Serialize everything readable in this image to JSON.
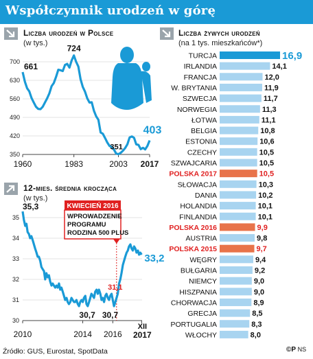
{
  "title": "Współczynnik urodzeń w górę",
  "source": "Źródło: GUS, Eurostat, SpotData",
  "logo": {
    "mark": "©P",
    "initials": "NS"
  },
  "icons": {
    "header_arrow": "arrow-down-right-icon",
    "panel_arrow": "arrow-up-right-icon",
    "mother_child": "mother-child-silhouette"
  },
  "colors": {
    "accent": "#1a9ad6",
    "red": "#e02020",
    "orange": "#e8734a",
    "light_bar": "#a8d4f0"
  },
  "chart_data": [
    {
      "type": "line",
      "title": "Liczba urodzeń w Polsce",
      "subtitle": "(w tys.)",
      "xlim": [
        1960,
        2017
      ],
      "ylim": [
        350,
        700
      ],
      "yticks": [
        350,
        420,
        490,
        560,
        630,
        700
      ],
      "xticks": [
        "1960",
        "1983",
        "2003",
        "2017"
      ],
      "annotations": [
        {
          "x": 1960,
          "y": 661,
          "label": "661"
        },
        {
          "x": 1983,
          "y": 724,
          "label": "724"
        },
        {
          "x": 2003,
          "y": 351,
          "label": "351"
        },
        {
          "x": 2017,
          "y": 403,
          "label": "403"
        }
      ],
      "x": [
        1960,
        1961,
        1962,
        1963,
        1964,
        1965,
        1966,
        1967,
        1968,
        1969,
        1970,
        1971,
        1972,
        1973,
        1974,
        1975,
        1976,
        1977,
        1978,
        1979,
        1980,
        1981,
        1982,
        1983,
        1984,
        1985,
        1986,
        1987,
        1988,
        1989,
        1990,
        1991,
        1992,
        1993,
        1994,
        1995,
        1996,
        1997,
        1998,
        1999,
        2000,
        2001,
        2002,
        2003,
        2004,
        2005,
        2006,
        2007,
        2008,
        2009,
        2010,
        2011,
        2012,
        2013,
        2014,
        2015,
        2016,
        2017
      ],
      "values": [
        661,
        625,
        600,
        588,
        563,
        546,
        530,
        522,
        521,
        530,
        546,
        562,
        581,
        608,
        620,
        643,
        670,
        668,
        665,
        688,
        692,
        678,
        705,
        724,
        700,
        682,
        634,
        605,
        587,
        562,
        546,
        547,
        515,
        494,
        481,
        433,
        428,
        412,
        395,
        382,
        378,
        368,
        353,
        351,
        356,
        364,
        374,
        388,
        414,
        418,
        413,
        388,
        386,
        370,
        375,
        369,
        382,
        403
      ]
    },
    {
      "type": "line",
      "title": "12-mies. średnia krocząca",
      "subtitle": "(w tys.)",
      "xlim": [
        2010,
        2017.95
      ],
      "ylim": [
        30,
        35
      ],
      "yticks": [
        30,
        31,
        32,
        33,
        34,
        35
      ],
      "xticks": [
        "2010",
        "2014",
        "2016"
      ],
      "xlabel_end": [
        "XII",
        "2017"
      ],
      "callout": {
        "title": "Kwiecień 2016",
        "text": [
          "Wprowadzenie",
          "programu",
          "Rodzina 500 plus"
        ],
        "x": 2016.25
      },
      "annotations": [
        {
          "x": 2010,
          "y": 35.3,
          "label": "35,3"
        },
        {
          "x": 2014.3,
          "y": 30.7,
          "label": "30,7"
        },
        {
          "x": 2016.1,
          "y": 30.7,
          "label": "30,7"
        },
        {
          "x": 2016.25,
          "y": 31.1,
          "label": "31,1"
        },
        {
          "x": 2017.92,
          "y": 33.2,
          "label": "33,2"
        }
      ],
      "x": [
        2010.0,
        2010.08,
        2010.17,
        2010.25,
        2010.33,
        2010.42,
        2010.5,
        2010.58,
        2010.67,
        2010.75,
        2010.83,
        2010.92,
        2011.0,
        2011.08,
        2011.17,
        2011.25,
        2011.33,
        2011.42,
        2011.5,
        2011.58,
        2011.67,
        2011.75,
        2011.83,
        2011.92,
        2012.0,
        2012.08,
        2012.17,
        2012.25,
        2012.33,
        2012.42,
        2012.5,
        2012.58,
        2012.67,
        2012.75,
        2012.83,
        2012.92,
        2013.0,
        2013.08,
        2013.17,
        2013.25,
        2013.33,
        2013.42,
        2013.5,
        2013.58,
        2013.67,
        2013.75,
        2013.83,
        2013.92,
        2014.0,
        2014.08,
        2014.17,
        2014.25,
        2014.33,
        2014.42,
        2014.5,
        2014.58,
        2014.67,
        2014.75,
        2014.83,
        2014.92,
        2015.0,
        2015.08,
        2015.17,
        2015.25,
        2015.33,
        2015.42,
        2015.5,
        2015.58,
        2015.67,
        2015.75,
        2015.83,
        2015.92,
        2016.0,
        2016.08,
        2016.17,
        2016.25,
        2016.33,
        2016.42,
        2016.5,
        2016.58,
        2016.67,
        2016.75,
        2016.83,
        2016.92,
        2017.0,
        2017.08,
        2017.17,
        2017.25,
        2017.33,
        2017.42,
        2017.5,
        2017.58,
        2017.67,
        2017.75,
        2017.83,
        2017.92
      ],
      "values": [
        35.3,
        34.9,
        34.6,
        34.7,
        34.3,
        34.2,
        34.0,
        34.1,
        33.9,
        33.7,
        33.5,
        33.3,
        33.1,
        33.1,
        32.9,
        32.6,
        32.5,
        32.4,
        32.0,
        32.3,
        32.1,
        32.2,
        31.9,
        31.7,
        31.8,
        31.7,
        31.6,
        31.7,
        31.6,
        31.8,
        31.5,
        31.6,
        31.4,
        31.2,
        31.0,
        31.1,
        30.9,
        30.8,
        30.9,
        31.1,
        31.0,
        30.9,
        30.9,
        31.0,
        30.8,
        30.7,
        30.9,
        31.0,
        30.9,
        31.1,
        31.2,
        30.8,
        30.7,
        30.9,
        31.1,
        31.3,
        31.2,
        31.1,
        31.4,
        31.5,
        31.3,
        31.5,
        31.3,
        31.0,
        31.1,
        30.9,
        31.2,
        31.3,
        31.1,
        31.0,
        31.2,
        31.3,
        31.0,
        30.7,
        30.9,
        31.1,
        31.3,
        31.8,
        32.0,
        32.3,
        32.7,
        32.9,
        33.1,
        33.3,
        33.4,
        33.6,
        33.7,
        33.5,
        33.4,
        33.6,
        33.5,
        33.3,
        33.4,
        33.2,
        33.3,
        33.2
      ]
    },
    {
      "type": "bar",
      "orientation": "horizontal",
      "title": "Liczba żywych urodzeń",
      "subtitle": "(na 1 tys. mieszkańców*)",
      "xlim": [
        0,
        17.5
      ],
      "categories": [
        "Turcja",
        "Irlandia",
        "Francja",
        "W. Brytania",
        "Szwecja",
        "Norwegia",
        "Łotwa",
        "Belgia",
        "Estonia",
        "Czechy",
        "Szwajcaria",
        "Polska 2017",
        "Słowacja",
        "Dania",
        "Holandia",
        "Finlandia",
        "Polska 2016",
        "Austria",
        "Polska 2015",
        "Węgry",
        "Bułgaria",
        "Niemcy",
        "Hiszpania",
        "Chorwacja",
        "Grecja",
        "Portugalia",
        "Włochy"
      ],
      "labels": [
        "16,9",
        "14,1",
        "12,0",
        "11,9",
        "11,7",
        "11,3",
        "11,1",
        "10,8",
        "10,6",
        "10,5",
        "10,5",
        "10,5",
        "10,3",
        "10,2",
        "10,1",
        "10,1",
        "9,9",
        "9,8",
        "9,7",
        "9,4",
        "9,2",
        "9,0",
        "9,0",
        "8,9",
        "8,5",
        "8,3",
        "8,0"
      ],
      "values": [
        16.9,
        14.1,
        12.0,
        11.9,
        11.7,
        11.3,
        11.1,
        10.8,
        10.6,
        10.5,
        10.5,
        10.5,
        10.3,
        10.2,
        10.1,
        10.1,
        9.9,
        9.8,
        9.7,
        9.4,
        9.2,
        9.0,
        9.0,
        8.9,
        8.5,
        8.3,
        8.0
      ],
      "highlight": [
        0,
        11,
        16,
        18
      ]
    }
  ]
}
